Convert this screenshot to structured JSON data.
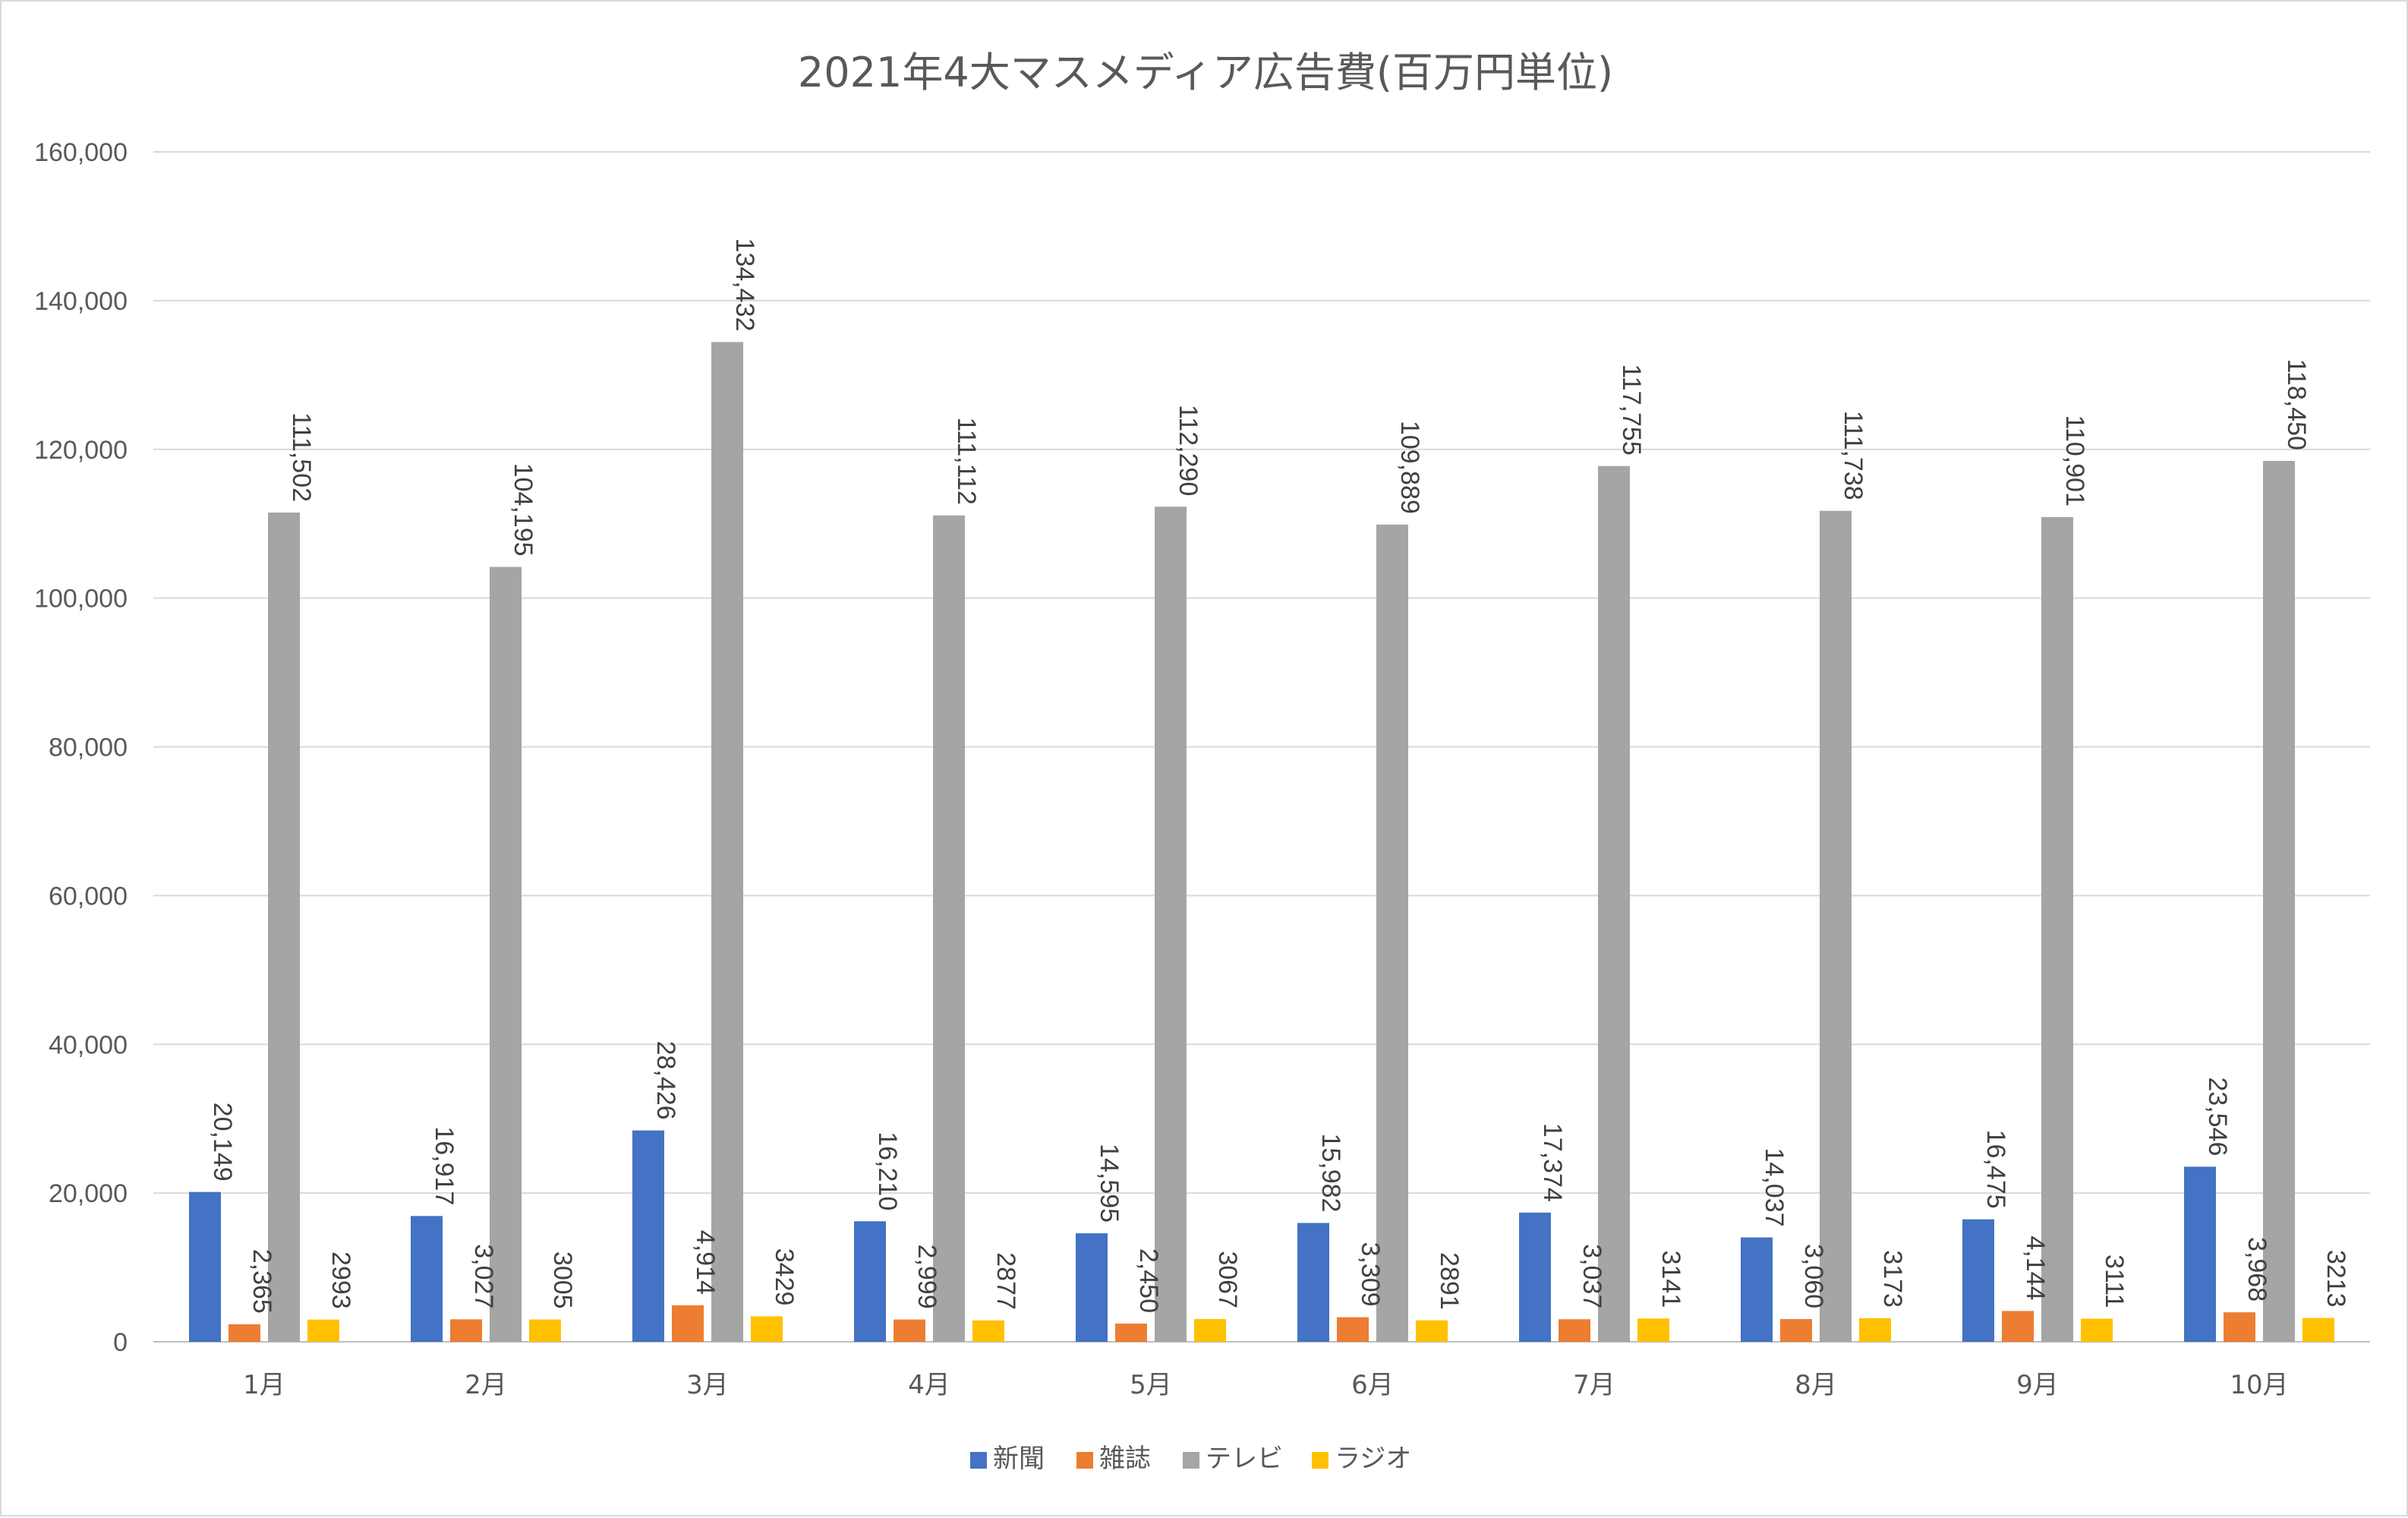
{
  "chart_data": {
    "type": "bar",
    "title": "2021年4大マスメディア広告費(百万円単位)",
    "categories": [
      "1月",
      "2月",
      "3月",
      "4月",
      "5月",
      "6月",
      "7月",
      "8月",
      "9月",
      "10月"
    ],
    "series": [
      {
        "name": "新聞",
        "color": "#4472C4",
        "values": [
          20149,
          16917,
          28426,
          16210,
          14595,
          15982,
          17374,
          14037,
          16475,
          23546
        ],
        "labels": [
          "20,149",
          "16,917",
          "28,426",
          "16,210",
          "14,595",
          "15,982",
          "17,374",
          "14,037",
          "16,475",
          "23,546"
        ]
      },
      {
        "name": "雑誌",
        "color": "#ED7D31",
        "values": [
          2365,
          3027,
          4914,
          2999,
          2450,
          3309,
          3037,
          3060,
          4144,
          3968
        ],
        "labels": [
          "2,365",
          "3,027",
          "4,914",
          "2,999",
          "2,450",
          "3,309",
          "3,037",
          "3,060",
          "4,144",
          "3,968"
        ]
      },
      {
        "name": "テレビ",
        "color": "#A5A5A5",
        "values": [
          111502,
          104195,
          134432,
          111112,
          112290,
          109889,
          117755,
          111738,
          110901,
          118450
        ],
        "labels": [
          "111,502",
          "104,195",
          "134,432",
          "111,112",
          "112,290",
          "109,889",
          "117,755",
          "111,738",
          "110,901",
          "118,450"
        ]
      },
      {
        "name": "ラジオ",
        "color": "#FFC000",
        "values": [
          2993,
          3005,
          3429,
          2877,
          3067,
          2891,
          3141,
          3173,
          3111,
          3213
        ],
        "labels": [
          "2993",
          "3005",
          "3429",
          "2877",
          "3067",
          "2891",
          "3141",
          "3173",
          "3111",
          "3213"
        ]
      }
    ],
    "ylim": [
      0,
      160000
    ],
    "yticks": [
      0,
      20000,
      40000,
      60000,
      80000,
      100000,
      120000,
      140000,
      160000
    ],
    "ytick_labels": [
      "0",
      "20,000",
      "40,000",
      "60,000",
      "80,000",
      "100,000",
      "120,000",
      "140,000",
      "160,000"
    ],
    "grid": true,
    "legend_position": "bottom"
  }
}
